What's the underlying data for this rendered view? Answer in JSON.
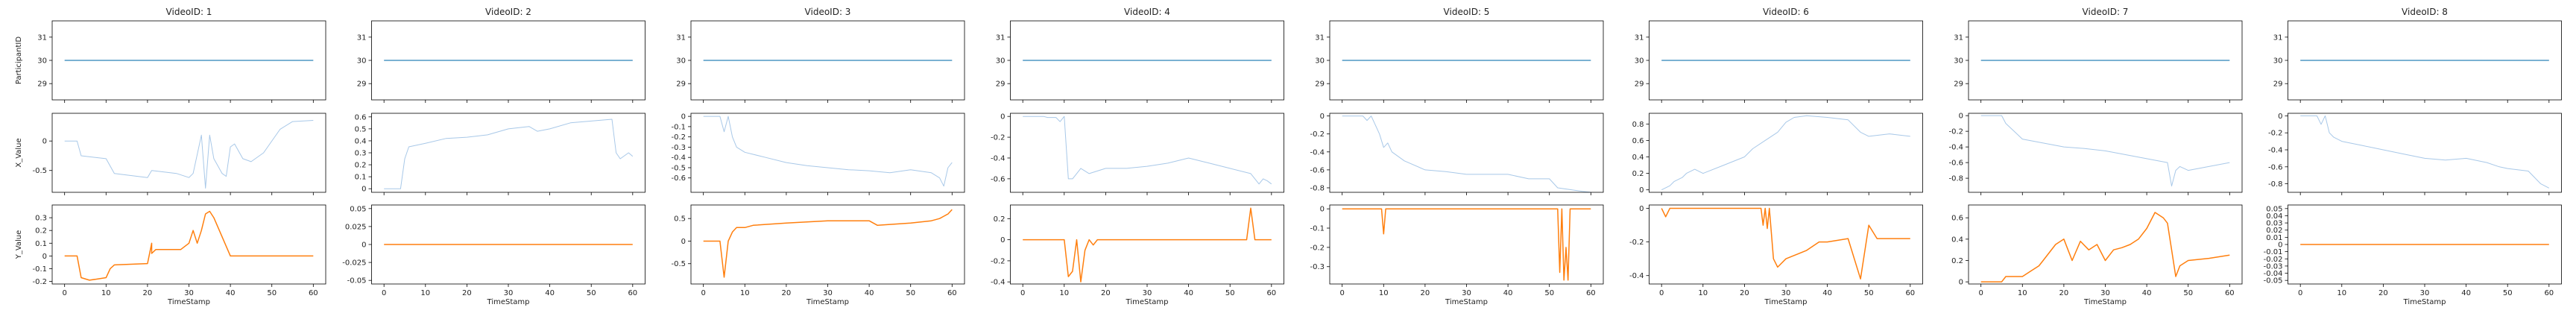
{
  "colors": {
    "participant": "#4f97c4",
    "x_value": "#a8c8e8",
    "y_value": "#ff7f0e"
  },
  "row_labels": [
    "ParticipantID",
    "X_Value",
    "Y_Value"
  ],
  "x_axis": {
    "label": "TimeStamp",
    "ticks": [
      "0",
      "10",
      "20",
      "30",
      "40",
      "50",
      "60"
    ],
    "range": [
      -3,
      63
    ]
  },
  "chart_data": [
    {
      "type": "line",
      "title": "VideoID: 1",
      "participant": {
        "value": 30,
        "ylim": [
          28.3,
          31.7
        ],
        "ticks": [
          29,
          30,
          31
        ]
      },
      "x_value": {
        "ylim": [
          -0.87,
          0.47
        ],
        "ticks": [
          0,
          -0.5
        ],
        "x": [
          0,
          3,
          4,
          10,
          12,
          20,
          21,
          27,
          30,
          31,
          33,
          34,
          35,
          36,
          38,
          39,
          40,
          41,
          43,
          45,
          48,
          52,
          55,
          60
        ],
        "y": [
          0,
          0,
          -0.25,
          -0.3,
          -0.55,
          -0.62,
          -0.5,
          -0.55,
          -0.62,
          -0.55,
          0.1,
          -0.8,
          0.1,
          -0.3,
          -0.55,
          -0.6,
          -0.1,
          -0.05,
          -0.3,
          -0.35,
          -0.2,
          0.2,
          0.33,
          0.35
        ]
      },
      "y_value": {
        "ylim": [
          -0.22,
          0.4
        ],
        "ticks": [
          0.3,
          0.2,
          0.1,
          0,
          -0.1,
          -0.2
        ],
        "x": [
          0,
          3,
          4,
          6,
          8,
          10,
          11,
          12,
          20,
          21,
          21,
          22,
          28,
          30,
          31,
          32,
          33,
          34,
          35,
          36,
          40,
          60
        ],
        "y": [
          0,
          0,
          -0.17,
          -0.19,
          -0.18,
          -0.17,
          -0.1,
          -0.07,
          -0.06,
          0.1,
          0.02,
          0.05,
          0.05,
          0.1,
          0.2,
          0.1,
          0.2,
          0.33,
          0.35,
          0.3,
          0,
          0
        ]
      }
    },
    {
      "type": "line",
      "title": "VideoID: 2",
      "participant": {
        "value": 30,
        "ylim": [
          28.3,
          31.7
        ],
        "ticks": [
          29,
          30,
          31
        ]
      },
      "x_value": {
        "ylim": [
          -0.03,
          0.63
        ],
        "ticks": [
          0.6,
          0.5,
          0.4,
          0.3,
          0.2,
          0.1,
          0
        ],
        "x": [
          0,
          4,
          5,
          6,
          10,
          15,
          20,
          25,
          30,
          35,
          37,
          40,
          45,
          55,
          56,
          57,
          59,
          60
        ],
        "y": [
          0,
          0,
          0.25,
          0.35,
          0.38,
          0.42,
          0.43,
          0.45,
          0.5,
          0.52,
          0.48,
          0.5,
          0.55,
          0.58,
          0.3,
          0.25,
          0.3,
          0.27
        ]
      },
      "y_value": {
        "ylim": [
          -0.055,
          0.055
        ],
        "ticks": [
          0.05,
          0.025,
          0,
          -0.025,
          -0.05
        ],
        "x": [
          0,
          60
        ],
        "y": [
          0,
          0
        ]
      }
    },
    {
      "type": "line",
      "title": "VideoID: 3",
      "participant": {
        "value": 30,
        "ylim": [
          28.3,
          31.7
        ],
        "ticks": [
          29,
          30,
          31
        ]
      },
      "x_value": {
        "ylim": [
          -0.74,
          0.03
        ],
        "ticks": [
          0,
          -0.1,
          -0.2,
          -0.3,
          -0.4,
          -0.5,
          -0.6
        ],
        "x": [
          0,
          4,
          5,
          6,
          7,
          8,
          10,
          15,
          20,
          25,
          30,
          35,
          40,
          45,
          50,
          55,
          57,
          58,
          59,
          60
        ],
        "y": [
          0,
          0,
          -0.15,
          0,
          -0.2,
          -0.3,
          -0.35,
          -0.4,
          -0.45,
          -0.48,
          -0.5,
          -0.52,
          -0.53,
          -0.55,
          -0.52,
          -0.55,
          -0.6,
          -0.68,
          -0.5,
          -0.45
        ]
      },
      "y_value": {
        "ylim": [
          -0.95,
          0.8
        ],
        "ticks": [
          0.5,
          0,
          -0.5
        ],
        "x": [
          0,
          4,
          5,
          6,
          7,
          8,
          10,
          12,
          20,
          30,
          40,
          42,
          50,
          55,
          57,
          58,
          59,
          60
        ],
        "y": [
          0,
          0,
          -0.8,
          0,
          0.2,
          0.3,
          0.3,
          0.35,
          0.4,
          0.45,
          0.45,
          0.35,
          0.4,
          0.45,
          0.5,
          0.55,
          0.6,
          0.7
        ]
      }
    },
    {
      "type": "line",
      "title": "VideoID: 4",
      "participant": {
        "value": 30,
        "ylim": [
          28.3,
          31.7
        ],
        "ticks": [
          29,
          30,
          31
        ]
      },
      "x_value": {
        "ylim": [
          -0.73,
          0.03
        ],
        "ticks": [
          0,
          -0.2,
          -0.4,
          -0.6
        ],
        "x": [
          0,
          5,
          6,
          8,
          9,
          10,
          11,
          12,
          13,
          14,
          16,
          20,
          25,
          30,
          35,
          40,
          45,
          50,
          55,
          57,
          58,
          59,
          60
        ],
        "y": [
          0,
          0,
          -0.01,
          -0.01,
          -0.05,
          0,
          -0.6,
          -0.6,
          -0.55,
          -0.5,
          -0.55,
          -0.5,
          -0.5,
          -0.48,
          -0.45,
          -0.4,
          -0.45,
          -0.5,
          -0.55,
          -0.65,
          -0.6,
          -0.62,
          -0.65
        ]
      },
      "y_value": {
        "ylim": [
          -0.42,
          0.33
        ],
        "ticks": [
          0.2,
          0,
          -0.2,
          -0.4
        ],
        "x": [
          0,
          10,
          11,
          12,
          13,
          14,
          15,
          16,
          17,
          18,
          54,
          55,
          56,
          57,
          60
        ],
        "y": [
          0,
          0,
          -0.35,
          -0.3,
          0,
          -0.4,
          -0.1,
          0,
          -0.05,
          0,
          0,
          0.3,
          0,
          0,
          0
        ]
      }
    },
    {
      "type": "line",
      "title": "VideoID: 5",
      "participant": {
        "value": 30,
        "ylim": [
          28.3,
          31.7
        ],
        "ticks": [
          29,
          30,
          31
        ]
      },
      "x_value": {
        "ylim": [
          -0.85,
          0.03
        ],
        "ticks": [
          0,
          -0.2,
          -0.4,
          -0.6,
          -0.8
        ],
        "x": [
          0,
          5,
          6,
          7,
          8,
          9,
          10,
          11,
          12,
          15,
          20,
          25,
          30,
          35,
          40,
          45,
          50,
          52,
          55,
          58,
          60
        ],
        "y": [
          0,
          0,
          -0.05,
          0,
          -0.1,
          -0.2,
          -0.35,
          -0.3,
          -0.4,
          -0.5,
          -0.6,
          -0.62,
          -0.65,
          -0.65,
          -0.65,
          -0.7,
          -0.7,
          -0.8,
          -0.82,
          -0.84,
          -0.85
        ]
      },
      "y_value": {
        "ylim": [
          -0.39,
          0.02
        ],
        "ticks": [
          0,
          -0.1,
          -0.2,
          -0.3
        ],
        "x": [
          0,
          9.5,
          10,
          10.5,
          52,
          52.5,
          53,
          53.5,
          54,
          54.5,
          55,
          60
        ],
        "y": [
          0,
          0,
          -0.13,
          0,
          0,
          -0.33,
          0,
          -0.37,
          -0.2,
          -0.37,
          0,
          0
        ]
      }
    },
    {
      "type": "line",
      "title": "VideoID: 6",
      "participant": {
        "value": 30,
        "ylim": [
          28.3,
          31.7
        ],
        "ticks": [
          29,
          30,
          31
        ]
      },
      "x_value": {
        "ylim": [
          -0.03,
          0.93
        ],
        "ticks": [
          0.8,
          0.6,
          0.4,
          0.2,
          0
        ],
        "x": [
          0,
          2,
          3,
          5,
          6,
          8,
          10,
          15,
          20,
          22,
          25,
          28,
          30,
          32,
          35,
          40,
          45,
          48,
          50,
          55,
          60
        ],
        "y": [
          0,
          0.05,
          0.1,
          0.15,
          0.2,
          0.25,
          0.2,
          0.3,
          0.4,
          0.5,
          0.6,
          0.7,
          0.82,
          0.88,
          0.9,
          0.88,
          0.85,
          0.7,
          0.65,
          0.68,
          0.65
        ]
      },
      "y_value": {
        "ylim": [
          -0.45,
          0.02
        ],
        "ticks": [
          0,
          -0.2,
          -0.4
        ],
        "x": [
          0,
          1,
          2,
          24,
          24.5,
          25,
          25.5,
          26,
          27,
          28,
          30,
          32,
          35,
          38,
          40,
          45,
          48,
          50,
          52,
          55,
          60
        ],
        "y": [
          0,
          -0.05,
          0,
          0,
          -0.1,
          0,
          -0.12,
          0,
          -0.3,
          -0.35,
          -0.3,
          -0.28,
          -0.25,
          -0.2,
          -0.2,
          -0.18,
          -0.42,
          -0.1,
          -0.18,
          -0.18,
          -0.18
        ]
      }
    },
    {
      "type": "line",
      "title": "VideoID: 7",
      "participant": {
        "value": 30,
        "ylim": [
          28.3,
          31.7
        ],
        "ticks": [
          29,
          30,
          31
        ]
      },
      "x_value": {
        "ylim": [
          -0.98,
          0.03
        ],
        "ticks": [
          0,
          -0.2,
          -0.4,
          -0.6,
          -0.8
        ],
        "x": [
          0,
          5,
          6,
          8,
          10,
          15,
          20,
          25,
          30,
          35,
          40,
          45,
          46,
          47,
          48,
          50,
          55,
          60
        ],
        "y": [
          0,
          0,
          -0.1,
          -0.2,
          -0.3,
          -0.35,
          -0.4,
          -0.42,
          -0.45,
          -0.5,
          -0.55,
          -0.6,
          -0.9,
          -0.7,
          -0.65,
          -0.7,
          -0.65,
          -0.6
        ]
      },
      "y_value": {
        "ylim": [
          -0.02,
          0.72
        ],
        "ticks": [
          0.6,
          0.4,
          0.2,
          0
        ],
        "x": [
          0,
          5,
          6,
          8,
          10,
          12,
          14,
          15,
          18,
          20,
          22,
          24,
          26,
          28,
          30,
          32,
          34,
          36,
          38,
          40,
          42,
          44,
          45,
          46,
          47,
          48,
          50,
          55,
          60
        ],
        "y": [
          0,
          0,
          0.05,
          0.05,
          0.05,
          0.1,
          0.15,
          0.2,
          0.35,
          0.4,
          0.2,
          0.38,
          0.3,
          0.35,
          0.2,
          0.3,
          0.32,
          0.35,
          0.4,
          0.5,
          0.65,
          0.6,
          0.55,
          0.3,
          0.05,
          0.15,
          0.2,
          0.22,
          0.25
        ]
      }
    },
    {
      "type": "line",
      "title": "VideoID: 8",
      "participant": {
        "value": 30,
        "ylim": [
          28.3,
          31.7
        ],
        "ticks": [
          29,
          30,
          31
        ]
      },
      "x_value": {
        "ylim": [
          -0.9,
          0.03
        ],
        "ticks": [
          0,
          -0.2,
          -0.4,
          -0.6,
          -0.8
        ],
        "x": [
          0,
          4,
          5,
          6,
          7,
          8,
          10,
          15,
          20,
          25,
          30,
          35,
          40,
          45,
          48,
          50,
          55,
          58,
          60
        ],
        "y": [
          0,
          0,
          -0.1,
          0,
          -0.2,
          -0.25,
          -0.3,
          -0.35,
          -0.4,
          -0.45,
          -0.5,
          -0.52,
          -0.5,
          -0.55,
          -0.6,
          -0.62,
          -0.65,
          -0.8,
          -0.85
        ]
      },
      "y_value": {
        "ylim": [
          -0.055,
          0.055
        ],
        "ticks": [
          0.05,
          0.04,
          0.03,
          0.02,
          0.01,
          0,
          -0.01,
          -0.02,
          -0.03,
          -0.04,
          -0.05
        ],
        "x": [
          0,
          60
        ],
        "y": [
          0,
          0
        ]
      }
    }
  ]
}
